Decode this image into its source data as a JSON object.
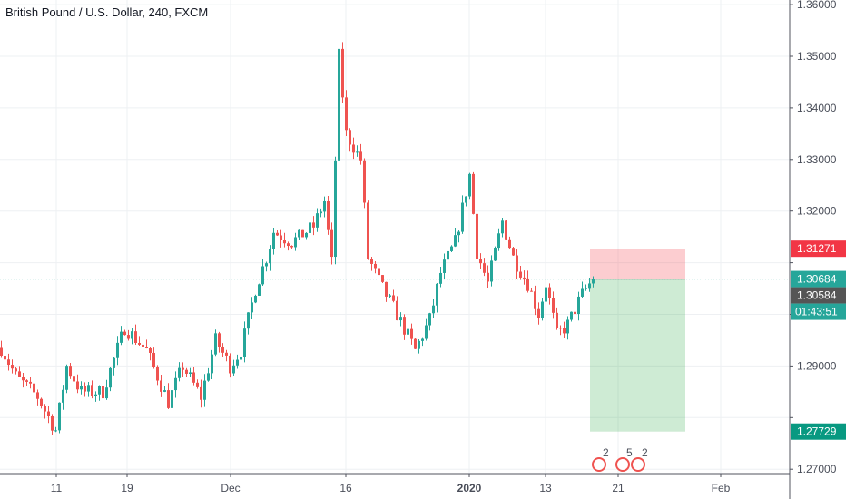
{
  "header": {
    "title": "British Pound / U.S. Dollar, 240, FXCM"
  },
  "chart_data": {
    "type": "candlestick",
    "title": "British Pound / U.S. Dollar, 240, FXCM",
    "ylim": [
      1.2695,
      1.3605
    ],
    "y_ticks": [
      "1.27000",
      "1.28000",
      "1.29000",
      "1.30000",
      "1.31000",
      "1.32000",
      "1.33000",
      "1.34000",
      "1.35000",
      "1.36000"
    ],
    "x_ticks": [
      "11",
      "19",
      "Dec",
      "16",
      "2020",
      "13",
      "21",
      "Feb"
    ],
    "grid": true,
    "close_path_by_bar": [
      [
        0,
        1.2935
      ],
      [
        4,
        1.288
      ],
      [
        10,
        1.284
      ],
      [
        15,
        1.2775
      ],
      [
        18,
        1.29
      ],
      [
        22,
        1.285
      ],
      [
        28,
        1.285
      ],
      [
        34,
        1.2975
      ],
      [
        40,
        1.293
      ],
      [
        46,
        1.283
      ],
      [
        50,
        1.29
      ],
      [
        55,
        1.284
      ],
      [
        59,
        1.295
      ],
      [
        63,
        1.29
      ],
      [
        66,
        1.293
      ],
      [
        70,
        1.305
      ],
      [
        73,
        1.311
      ],
      [
        75,
        1.316
      ],
      [
        80,
        1.314
      ],
      [
        86,
        1.317
      ],
      [
        89,
        1.322
      ],
      [
        91,
        1.31
      ],
      [
        93,
        1.35
      ],
      [
        95,
        1.335
      ],
      [
        99,
        1.33
      ],
      [
        101,
        1.311
      ],
      [
        105,
        1.305
      ],
      [
        109,
        1.3
      ],
      [
        114,
        1.293
      ],
      [
        118,
        1.299
      ],
      [
        121,
        1.308
      ],
      [
        125,
        1.314
      ],
      [
        129,
        1.327
      ],
      [
        131,
        1.312
      ],
      [
        134,
        1.306
      ],
      [
        138,
        1.318
      ],
      [
        141,
        1.311
      ],
      [
        145,
        1.306
      ],
      [
        148,
        1.3
      ],
      [
        150,
        1.306
      ],
      [
        153,
        1.296
      ],
      [
        156,
        1.298
      ],
      [
        160,
        1.304
      ],
      [
        163,
        1.3068
      ]
    ],
    "colors": {
      "up": "#26a69a",
      "down": "#ef5350"
    },
    "price_labels": [
      {
        "value": 1.31271,
        "text": "1.31271",
        "color": "#f23645"
      },
      {
        "value": 1.30684,
        "text": "1.30684",
        "color": "#26a69a"
      },
      {
        "value": 1.30584,
        "text": "1.30584",
        "color": "#555555"
      },
      {
        "value": 1.27729,
        "text": "1.27729",
        "color": "#089981"
      }
    ],
    "countdown": "01:43:51",
    "position": {
      "entry": 1.30684,
      "stop": 1.31271,
      "target": 1.27729
    },
    "events": [
      "2",
      "5",
      "2"
    ]
  }
}
